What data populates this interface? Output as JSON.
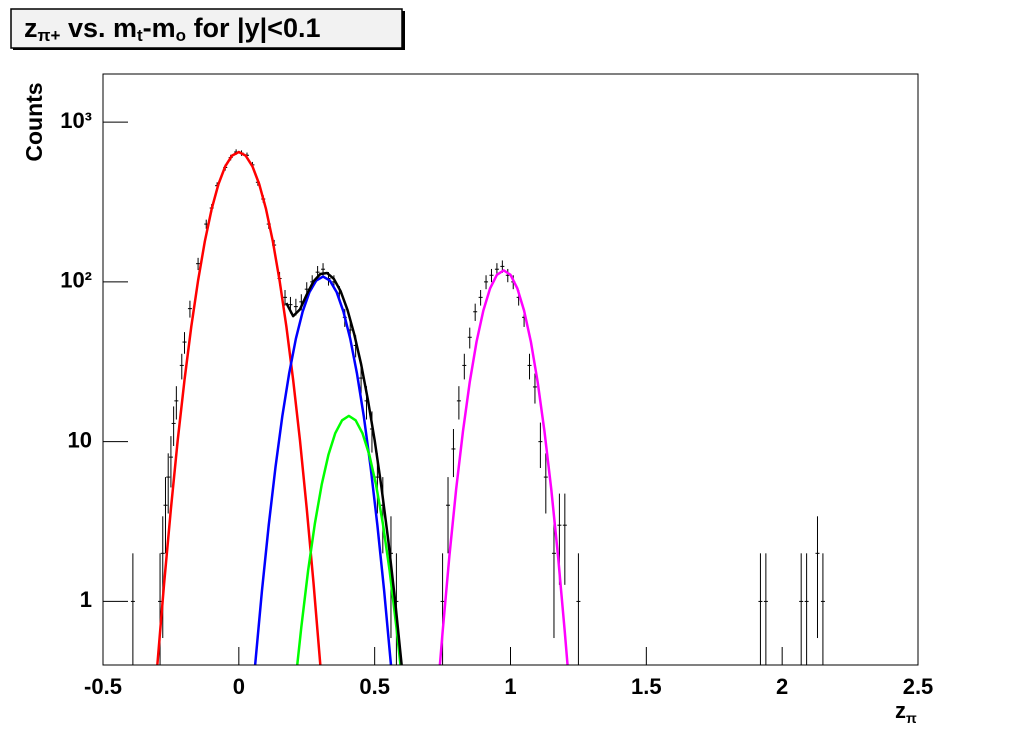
{
  "chart_data": {
    "type": "line",
    "title": [
      "z",
      "π+",
      " vs. m",
      "t",
      "-m",
      "o",
      " for |y|<0.1"
    ],
    "x_label": [
      "z",
      "π"
    ],
    "y_label": "Counts",
    "log_y": true,
    "xlim": [
      -0.5,
      2.5
    ],
    "xticks": [
      -0.5,
      0,
      0.5,
      1,
      1.5,
      2,
      2.5
    ],
    "ylim": [
      0.4,
      2000
    ],
    "yticks": [
      1,
      10,
      {
        "value": 100,
        "label": "10²"
      },
      {
        "value": 1000,
        "label": "10³"
      }
    ],
    "series": [
      {
        "color": "#ff0000",
        "x": [
          -0.3,
          -0.275,
          -0.25,
          -0.225,
          -0.2,
          -0.175,
          -0.15,
          -0.125,
          -0.1,
          -0.075,
          -0.05,
          -0.025,
          0,
          0.025,
          0.05,
          0.075,
          0.1,
          0.125,
          0.15,
          0.175,
          0.2,
          0.225,
          0.25,
          0.275,
          0.3
        ],
        "values": [
          0.4,
          1.3,
          3.8,
          10.2,
          24.3,
          52.5,
          102,
          180,
          286,
          409,
          529,
          617,
          650,
          617,
          529,
          409,
          286,
          180,
          102,
          52.5,
          24.3,
          10.2,
          3.8,
          1.3,
          0.4
        ]
      },
      {
        "color": "#0000ff",
        "x": [
          0.06,
          0.085,
          0.11,
          0.135,
          0.16,
          0.185,
          0.21,
          0.235,
          0.26,
          0.285,
          0.31,
          0.335,
          0.36,
          0.385,
          0.41,
          0.435,
          0.46,
          0.485,
          0.51,
          0.535,
          0.56
        ],
        "values": [
          0.4,
          1.16,
          3.0,
          6.94,
          14.4,
          26.6,
          44.1,
          65.2,
          86.3,
          102,
          108,
          102,
          86.3,
          65.2,
          44.1,
          26.6,
          14.4,
          6.94,
          3.0,
          1.16,
          0.4
        ]
      },
      {
        "color": "#00ff00",
        "x": [
          0.215,
          0.23,
          0.255,
          0.28,
          0.305,
          0.33,
          0.355,
          0.38,
          0.405,
          0.43,
          0.455,
          0.48,
          0.505,
          0.53,
          0.555,
          0.58,
          0.595
        ],
        "values": [
          0.4,
          0.69,
          1.56,
          3.08,
          5.38,
          8.3,
          11.3,
          13.6,
          14.5,
          13.6,
          11.3,
          8.3,
          5.38,
          3.08,
          1.56,
          0.69,
          0.4
        ]
      },
      {
        "color": "#ff00ff",
        "x": [
          0.74,
          0.75,
          0.775,
          0.8,
          0.825,
          0.85,
          0.875,
          0.9,
          0.925,
          0.95,
          0.975,
          1.0,
          1.025,
          1.05,
          1.075,
          1.1,
          1.125,
          1.15,
          1.175,
          1.2,
          1.21
        ],
        "values": [
          0.4,
          0.64,
          1.92,
          5.05,
          11.6,
          23.6,
          42.2,
          66.1,
          91.2,
          110.7,
          118,
          110.7,
          91.2,
          66.1,
          42.2,
          23.6,
          11.6,
          5.05,
          1.92,
          0.64,
          0.4
        ]
      },
      {
        "color": "#000000",
        "x": [
          0.175,
          0.2,
          0.225,
          0.25,
          0.275,
          0.3,
          0.325,
          0.35,
          0.375,
          0.4,
          0.425,
          0.45,
          0.475,
          0.5,
          0.525,
          0.55,
          0.575,
          0.6
        ],
        "values": [
          73.7,
          61,
          67.3,
          83.3,
          100.8,
          112,
          113.6,
          104.3,
          87.2,
          66.7,
          46.9,
          30.6,
          18.3,
          10.2,
          5.18,
          2.42,
          1.02,
          0.39
        ]
      }
    ],
    "points": {
      "color": "#000000",
      "x": [
        -0.39,
        -0.29,
        -0.28,
        -0.27,
        -0.26,
        -0.25,
        -0.24,
        -0.23,
        -0.21,
        -0.2,
        -0.18,
        -0.15,
        -0.12,
        -0.1,
        -0.08,
        -0.05,
        -0.03,
        -0.01,
        0.01,
        0.03,
        0.05,
        0.07,
        0.09,
        0.11,
        0.13,
        0.15,
        0.17,
        0.19,
        0.21,
        0.23,
        0.25,
        0.27,
        0.29,
        0.31,
        0.33,
        0.35,
        0.37,
        0.39,
        0.41,
        0.43,
        0.45,
        0.47,
        0.49,
        0.51,
        0.53,
        0.56,
        0.58,
        0.75,
        0.77,
        0.79,
        0.81,
        0.83,
        0.85,
        0.87,
        0.89,
        0.91,
        0.93,
        0.95,
        0.97,
        0.99,
        1.01,
        1.03,
        1.05,
        1.07,
        1.09,
        1.11,
        1.13,
        1.16,
        1.18,
        1.2,
        1.25,
        1.92,
        1.94,
        2.07,
        2.09,
        2.13,
        2.15
      ],
      "values": [
        1,
        1,
        2,
        4,
        6,
        8,
        13,
        18,
        30,
        42,
        68,
        130,
        230,
        290,
        400,
        520,
        600,
        650,
        640,
        620,
        540,
        420,
        330,
        230,
        170,
        105,
        80,
        72,
        70,
        75,
        90,
        100,
        115,
        120,
        105,
        100,
        85,
        60,
        50,
        40,
        25,
        18,
        12,
        6,
        4,
        2,
        1,
        1,
        4,
        9,
        18,
        30,
        45,
        65,
        80,
        100,
        110,
        120,
        125,
        110,
        100,
        80,
        60,
        30,
        22,
        10,
        6,
        2,
        3,
        3,
        1,
        1,
        1,
        1,
        1,
        2,
        1
      ],
      "errors": [
        1,
        1,
        1.41,
        2,
        2.45,
        2.83,
        3.61,
        4.24,
        5.48,
        6.48,
        8.25,
        11.4,
        15.17,
        17.03,
        20,
        22.8,
        24.49,
        25.5,
        25.3,
        24.9,
        23.24,
        20.49,
        18.17,
        15.17,
        13.04,
        10.25,
        8.94,
        8.49,
        8.37,
        8.66,
        9.49,
        10,
        10.72,
        10.95,
        10.25,
        10,
        9.22,
        7.75,
        7.07,
        6.32,
        5,
        4.24,
        3.46,
        2.45,
        2,
        1.41,
        1,
        1,
        2,
        3,
        4.24,
        5.48,
        6.71,
        8.06,
        8.94,
        10,
        10.49,
        10.95,
        11.18,
        10.49,
        10,
        8.94,
        7.75,
        5.48,
        4.69,
        3.16,
        2.45,
        1.41,
        1.73,
        1.73,
        1,
        1,
        1,
        1,
        1,
        1.41,
        1
      ]
    }
  }
}
